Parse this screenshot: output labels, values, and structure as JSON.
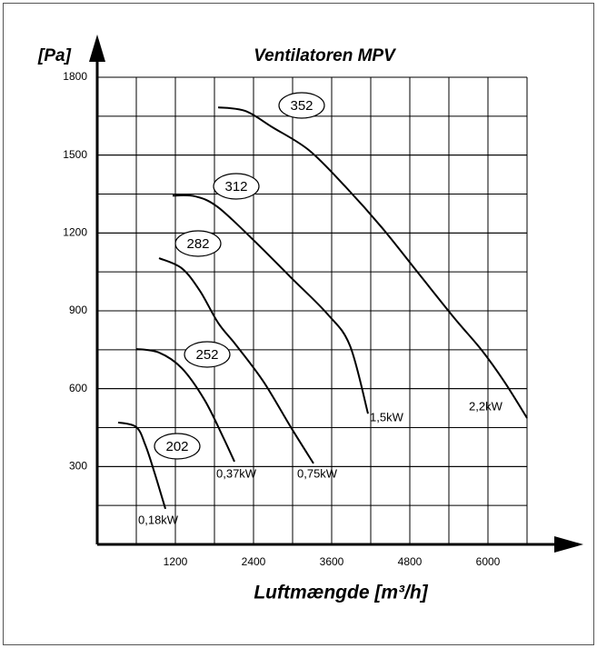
{
  "chart_data": {
    "type": "line",
    "title": "Ventilatoren MPV",
    "y_label": "[Pa]",
    "x_label": "Luftmængde [m³/h]",
    "xlim": [
      0,
      6600
    ],
    "xticks": [
      1200,
      2400,
      3600,
      4800,
      6000
    ],
    "ylim": [
      0,
      1800
    ],
    "yticks": [
      300,
      600,
      900,
      1200,
      1500,
      1800
    ],
    "grid": true,
    "color": "#000000",
    "series": [
      {
        "name": "202",
        "power": "0,18kW",
        "x": [
          321,
          600,
          740,
          879,
          1047
        ],
        "values": [
          470,
          452,
          382,
          277,
          137
        ]
      },
      {
        "name": "252",
        "power": "0,37kW",
        "x": [
          600,
          949,
          1298,
          1647,
          1926,
          2107
        ],
        "values": [
          753,
          739,
          679,
          557,
          417,
          319
        ]
      },
      {
        "name": "282",
        "power": "0,75kW",
        "x": [
          949,
          1298,
          1577,
          1856,
          2135,
          2553,
          2972,
          3321
        ],
        "values": [
          1103,
          1064,
          977,
          854,
          767,
          627,
          452,
          312
        ]
      },
      {
        "name": "312",
        "power": "1,5kW",
        "x": [
          1158,
          1507,
          1856,
          2414,
          2972,
          3530,
          3879,
          4158
        ],
        "values": [
          1344,
          1341,
          1299,
          1169,
          1029,
          889,
          767,
          504
        ]
      },
      {
        "name": "352",
        "power": "2,2kW",
        "x": [
          1856,
          2274,
          2693,
          3251,
          3809,
          4367,
          4925,
          5484,
          5902,
          6251,
          6600
        ],
        "values": [
          1684,
          1670,
          1607,
          1519,
          1379,
          1222,
          1047,
          872,
          749,
          627,
          487
        ]
      }
    ]
  }
}
